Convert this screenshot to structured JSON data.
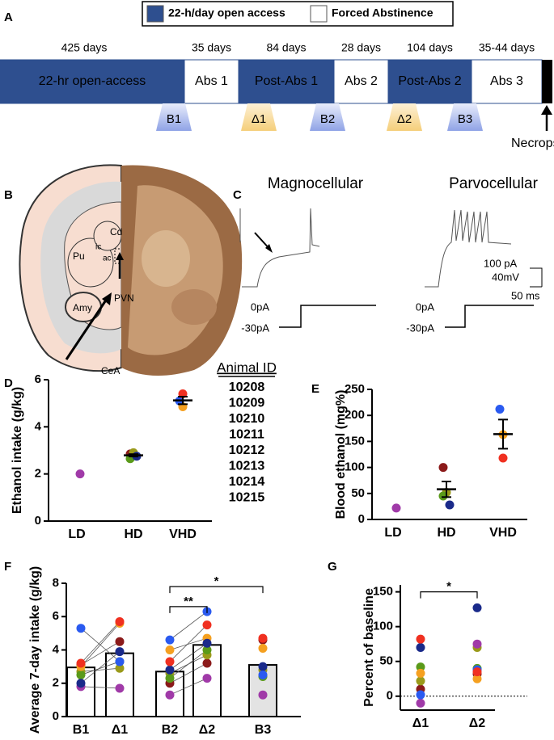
{
  "panels": [
    "A",
    "B",
    "C",
    "D",
    "E",
    "F",
    "G"
  ],
  "legend": [
    {
      "label": "22-h/day open access",
      "color": "#2e4f8f"
    },
    {
      "label": "Forced Abstinence",
      "color": "#ffffff"
    }
  ],
  "timeline": {
    "segments": [
      {
        "label": "22-hr open-access",
        "duration": "425 days",
        "color": "#2e4f8f"
      },
      {
        "label": "Abs 1",
        "duration": "35 days",
        "color": "#ffffff"
      },
      {
        "label": "Post-Abs 1",
        "duration": "84 days",
        "color": "#2e4f8f"
      },
      {
        "label": "Abs 2",
        "duration": "28 days",
        "color": "#ffffff"
      },
      {
        "label": "Post-Abs 2",
        "duration": "104 days",
        "color": "#2e4f8f"
      },
      {
        "label": "Abs 3",
        "duration": "35-44 days",
        "color": "#ffffff"
      }
    ],
    "markers": [
      "B1",
      "Δ1",
      "B2",
      "Δ2",
      "B3"
    ],
    "end_label": "Necropsy"
  },
  "brain": {
    "labels": [
      "Cd",
      "Pu",
      "ic",
      "ac",
      "Amy",
      "PVN",
      "CeA"
    ]
  },
  "traces": {
    "titles": [
      "Magnocellular",
      "Parvocellular"
    ],
    "current_labels": [
      "0pA",
      "-30pA"
    ],
    "scale_labels": [
      "100 pA",
      "40mV",
      "50 ms"
    ]
  },
  "chart_data": [
    {
      "type": "dot",
      "ylabel": "Ethanol intake (g/kg)",
      "legend_title": "Animal ID",
      "categories": [
        "LD",
        "HD",
        "VHD"
      ],
      "ylim": [
        0,
        6
      ],
      "yticks": [
        0,
        2,
        4,
        6
      ],
      "series": [
        {
          "name": "10208",
          "color": "#8b1a1a",
          "values": [
            null,
            2.85,
            null
          ]
        },
        {
          "name": "10209",
          "color": "#9a9a1a",
          "values": [
            null,
            2.9,
            null
          ]
        },
        {
          "name": "10210",
          "color": "#a03aa8",
          "values": [
            2.0,
            null,
            null
          ]
        },
        {
          "name": "10211",
          "color": "#5a9a1a",
          "values": [
            null,
            2.65,
            null
          ]
        },
        {
          "name": "10212",
          "color": "#f5a020",
          "values": [
            null,
            null,
            4.85
          ]
        },
        {
          "name": "10213",
          "color": "#1a2a8a",
          "values": [
            null,
            2.75,
            null
          ]
        },
        {
          "name": "10214",
          "color": "#2a5af0",
          "values": [
            null,
            null,
            5.1
          ]
        },
        {
          "name": "10215",
          "color": "#f03020",
          "values": [
            null,
            null,
            5.4
          ]
        }
      ],
      "mean": [
        null,
        2.79,
        5.12
      ],
      "sem": [
        null,
        0.05,
        0.16
      ]
    },
    {
      "type": "dot",
      "ylabel": "Blood ethanol (mg%)",
      "categories": [
        "LD",
        "HD",
        "VHD"
      ],
      "ylim": [
        0,
        250
      ],
      "yticks": [
        0,
        50,
        100,
        150,
        200,
        250
      ],
      "series": [
        {
          "color": "#8b1a1a",
          "values": [
            null,
            100,
            null
          ]
        },
        {
          "color": "#9a9a1a",
          "values": [
            null,
            52,
            null
          ]
        },
        {
          "color": "#a03aa8",
          "values": [
            22,
            null,
            null
          ]
        },
        {
          "color": "#5a9a1a",
          "values": [
            null,
            45,
            null
          ]
        },
        {
          "color": "#f5a020",
          "values": [
            null,
            null,
            163
          ]
        },
        {
          "color": "#1a2a8a",
          "values": [
            null,
            28,
            null
          ]
        },
        {
          "color": "#2a5af0",
          "values": [
            null,
            null,
            212
          ]
        },
        {
          "color": "#f03020",
          "values": [
            null,
            null,
            118
          ]
        }
      ],
      "mean": [
        null,
        58,
        164
      ],
      "sem": [
        null,
        15,
        28
      ]
    },
    {
      "type": "bar",
      "ylabel": "Average 7-day intake (g/kg)",
      "categories": [
        "B1",
        "Δ1",
        "B2",
        "Δ2",
        "B3"
      ],
      "ylim": [
        0,
        8
      ],
      "yticks": [
        0,
        2,
        4,
        6,
        8
      ],
      "bar_values": [
        2.95,
        3.8,
        2.7,
        4.3,
        3.1
      ],
      "bar_colors": [
        "#ffffff",
        "#ffffff",
        "#ffffff",
        "#ffffff",
        "#e3e3e3"
      ],
      "series": [
        {
          "color": "#8b1a1a",
          "values": [
            3.1,
            4.5,
            2.0,
            3.2,
            4.6
          ]
        },
        {
          "color": "#9a9a1a",
          "values": [
            2.7,
            2.9,
            2.6,
            3.7,
            2.8
          ]
        },
        {
          "color": "#a03aa8",
          "values": [
            1.8,
            1.7,
            1.3,
            2.3,
            1.3
          ]
        },
        {
          "color": "#5a9a1a",
          "values": [
            2.5,
            3.3,
            2.3,
            4.0,
            2.4
          ]
        },
        {
          "color": "#f5a020",
          "values": [
            3.0,
            5.6,
            4.0,
            4.7,
            4.1
          ]
        },
        {
          "color": "#1a2a8a",
          "values": [
            2.0,
            3.9,
            2.8,
            4.4,
            3.0
          ]
        },
        {
          "color": "#2a5af0",
          "values": [
            5.3,
            3.3,
            4.6,
            6.3,
            2.5
          ]
        },
        {
          "color": "#f03020",
          "values": [
            3.2,
            5.7,
            3.3,
            5.5,
            4.7
          ]
        }
      ],
      "annotations": [
        "**",
        "*"
      ]
    },
    {
      "type": "dot",
      "ylabel": "Percent of baseline",
      "categories": [
        "Δ1",
        "Δ2"
      ],
      "ylim": [
        -20,
        160
      ],
      "yticks": [
        0,
        50,
        100,
        150
      ],
      "zero_line": true,
      "series": [
        {
          "color": "#8b1a1a",
          "values": [
            10,
            32
          ]
        },
        {
          "color": "#9a9a1a",
          "values": [
            22,
            70
          ]
        },
        {
          "color": "#a03aa8",
          "values": [
            -10,
            75
          ]
        },
        {
          "color": "#5a9a1a",
          "values": [
            42,
            40
          ]
        },
        {
          "color": "#f5a020",
          "values": [
            33,
            25
          ]
        },
        {
          "color": "#1a2a8a",
          "values": [
            70,
            127
          ]
        },
        {
          "color": "#2a5af0",
          "values": [
            2,
            38
          ]
        },
        {
          "color": "#f03020",
          "values": [
            82,
            35
          ]
        }
      ],
      "annotations": [
        "*"
      ]
    }
  ]
}
